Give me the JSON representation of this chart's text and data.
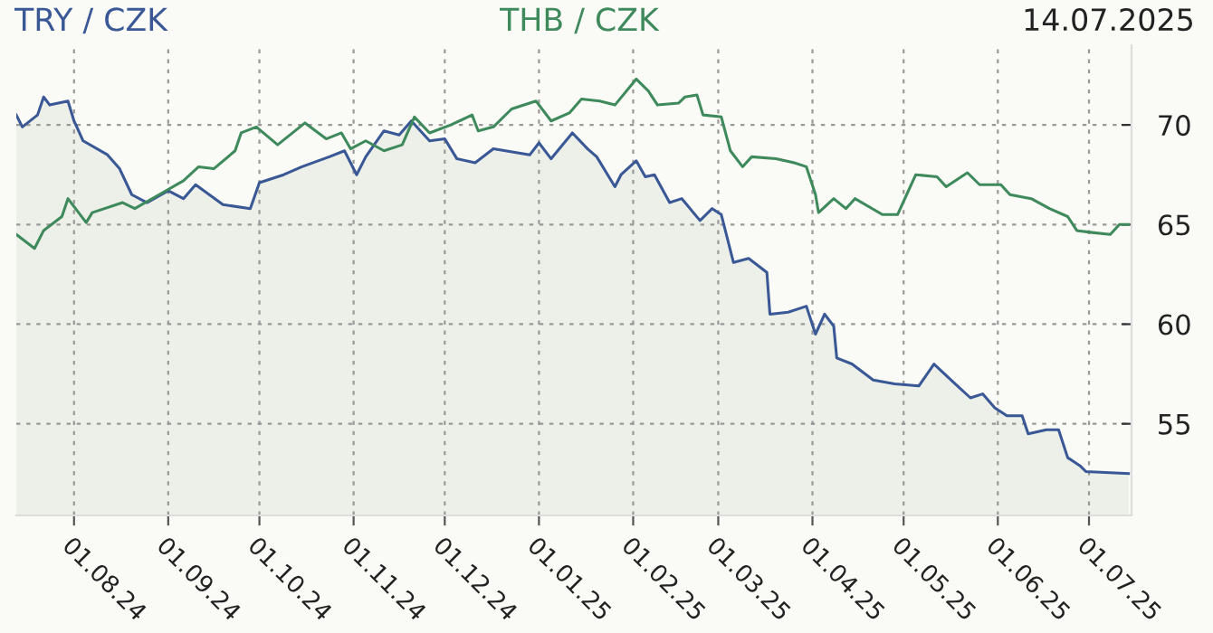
{
  "chart_data": {
    "type": "line",
    "title": "14.07.2025",
    "legend": "top",
    "grid": true,
    "marker": "none",
    "line_style": "solid",
    "xlim": [
      "2024-07-13",
      "2025-07-15"
    ],
    "ylim": [
      50.4,
      74
    ],
    "yticks": [
      55,
      60,
      65,
      70
    ],
    "xticks": [
      {
        "value": "2024-08-01",
        "label": "01.08.24"
      },
      {
        "value": "2024-09-01",
        "label": "01.09.24"
      },
      {
        "value": "2024-10-01",
        "label": "01.10.24"
      },
      {
        "value": "2024-11-01",
        "label": "01.11.24"
      },
      {
        "value": "2024-12-01",
        "label": "01.12.24"
      },
      {
        "value": "2025-01-01",
        "label": "01.01.25"
      },
      {
        "value": "2025-02-01",
        "label": "01.02.25"
      },
      {
        "value": "2025-03-01",
        "label": "01.03.25"
      },
      {
        "value": "2025-04-01",
        "label": "01.04.25"
      },
      {
        "value": "2025-05-01",
        "label": "01.05.25"
      },
      {
        "value": "2025-06-01",
        "label": "01.06.25"
      },
      {
        "value": "2025-07-01",
        "label": "01.07.25"
      }
    ],
    "series": [
      {
        "name": "TRY / CZK",
        "type": "area",
        "color": "#3a5796",
        "x": [
          "2024-07-13",
          "2024-07-15",
          "2024-07-20",
          "2024-07-22",
          "2024-07-24",
          "2024-07-30",
          "2024-08-01",
          "2024-08-04",
          "2024-08-12",
          "2024-08-16",
          "2024-08-20",
          "2024-08-25",
          "2024-09-01",
          "2024-09-06",
          "2024-09-10",
          "2024-09-19",
          "2024-09-28",
          "2024-10-01",
          "2024-10-09",
          "2024-10-15",
          "2024-10-24",
          "2024-10-29",
          "2024-11-02",
          "2024-11-05",
          "2024-11-11",
          "2024-11-16",
          "2024-11-20",
          "2024-11-26",
          "2024-12-01",
          "2024-12-05",
          "2024-12-11",
          "2024-12-17",
          "2024-12-29",
          "2025-01-01",
          "2025-01-05",
          "2025-01-12",
          "2025-01-17",
          "2025-01-20",
          "2025-01-26",
          "2025-01-28",
          "2025-02-02",
          "2025-02-05",
          "2025-02-08",
          "2025-02-13",
          "2025-02-17",
          "2025-02-23",
          "2025-02-27",
          "2025-03-02",
          "2025-03-06",
          "2025-03-11",
          "2025-03-17",
          "2025-03-18",
          "2025-03-24",
          "2025-03-30",
          "2025-04-02",
          "2025-04-05",
          "2025-04-08",
          "2025-04-09",
          "2025-04-14",
          "2025-04-21",
          "2025-04-28",
          "2025-05-06",
          "2025-05-11",
          "2025-05-18",
          "2025-05-23",
          "2025-05-27",
          "2025-05-31",
          "2025-06-04",
          "2025-06-09",
          "2025-06-11",
          "2025-06-17",
          "2025-06-21",
          "2025-06-24",
          "2025-06-28",
          "2025-06-30",
          "2025-07-14"
        ],
        "values": [
          70.5,
          69.9,
          70.5,
          71.4,
          71.0,
          71.2,
          70.2,
          69.2,
          68.5,
          67.8,
          66.5,
          66.1,
          66.7,
          66.3,
          67.0,
          66.0,
          65.8,
          67.1,
          67.5,
          67.9,
          68.4,
          68.7,
          67.5,
          68.4,
          69.7,
          69.5,
          70.2,
          69.2,
          69.3,
          68.3,
          68.1,
          68.8,
          68.5,
          69.1,
          68.3,
          69.6,
          68.8,
          68.4,
          66.9,
          67.5,
          68.2,
          67.4,
          67.5,
          66.1,
          66.3,
          65.2,
          65.8,
          65.5,
          63.1,
          63.3,
          62.6,
          60.5,
          60.6,
          60.9,
          59.5,
          60.5,
          59.9,
          58.3,
          58.0,
          57.2,
          57.0,
          56.9,
          58.0,
          57.0,
          56.3,
          56.5,
          55.8,
          55.4,
          55.4,
          54.5,
          54.7,
          54.7,
          53.3,
          52.9,
          52.6,
          52.5
        ]
      },
      {
        "name": "THB / CZK",
        "color": "#3f8a5c",
        "x": [
          "2024-07-13",
          "2024-07-19",
          "2024-07-22",
          "2024-07-28",
          "2024-07-30",
          "2024-08-05",
          "2024-08-07",
          "2024-08-17",
          "2024-08-21",
          "2024-08-29",
          "2024-09-06",
          "2024-09-11",
          "2024-09-16",
          "2024-09-23",
          "2024-09-25",
          "2024-09-30",
          "2024-10-07",
          "2024-10-16",
          "2024-10-23",
          "2024-10-28",
          "2024-10-31",
          "2024-11-05",
          "2024-11-11",
          "2024-11-17",
          "2024-11-21",
          "2024-11-26",
          "2024-12-03",
          "2024-12-10",
          "2024-12-12",
          "2024-12-17",
          "2024-12-23",
          "2024-12-31",
          "2025-01-05",
          "2025-01-11",
          "2025-01-15",
          "2025-01-21",
          "2025-01-26",
          "2025-02-02",
          "2025-02-06",
          "2025-02-09",
          "2025-02-16",
          "2025-02-18",
          "2025-02-22",
          "2025-02-24",
          "2025-03-02",
          "2025-03-05",
          "2025-03-09",
          "2025-03-12",
          "2025-03-20",
          "2025-03-26",
          "2025-03-30",
          "2025-04-02",
          "2025-04-03",
          "2025-04-08",
          "2025-04-12",
          "2025-04-15",
          "2025-04-24",
          "2025-04-29",
          "2025-05-02",
          "2025-05-05",
          "2025-05-12",
          "2025-05-15",
          "2025-05-22",
          "2025-05-26",
          "2025-06-02",
          "2025-06-05",
          "2025-06-12",
          "2025-06-18",
          "2025-06-24",
          "2025-06-27",
          "2025-07-02",
          "2025-07-08",
          "2025-07-11",
          "2025-07-14"
        ],
        "values": [
          64.5,
          63.8,
          64.7,
          65.4,
          66.3,
          65.1,
          65.6,
          66.1,
          65.8,
          66.5,
          67.2,
          67.9,
          67.8,
          68.7,
          69.6,
          69.9,
          69.0,
          70.1,
          69.3,
          69.6,
          68.8,
          69.2,
          68.7,
          69.0,
          70.4,
          69.6,
          70.0,
          70.5,
          69.7,
          69.9,
          70.8,
          71.2,
          70.2,
          70.6,
          71.3,
          71.2,
          71.0,
          72.3,
          71.7,
          71.0,
          71.1,
          71.4,
          71.5,
          70.5,
          70.4,
          68.7,
          67.9,
          68.4,
          68.3,
          68.1,
          67.9,
          66.5,
          65.6,
          66.3,
          65.8,
          66.3,
          65.5,
          65.5,
          66.5,
          67.5,
          67.4,
          66.9,
          67.6,
          67.0,
          67.0,
          66.5,
          66.3,
          65.8,
          65.4,
          64.7,
          64.6,
          64.5,
          65.0,
          65.0
        ]
      }
    ]
  }
}
